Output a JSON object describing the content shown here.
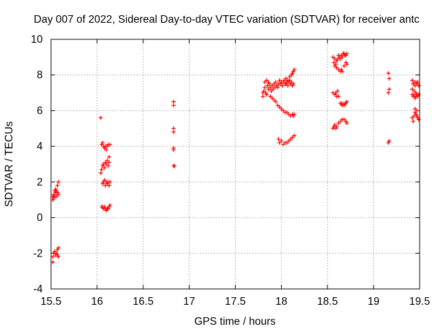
{
  "chart_data": {
    "type": "scatter",
    "title": "Day 007 of 2022, Sidereal Day-to-day VTEC variation (SDTVAR) for receiver antc",
    "xlabel": "GPS time / hours",
    "ylabel": "SDTVAR / TECUs",
    "xlim": [
      15.5,
      19.5
    ],
    "ylim": [
      -4,
      10
    ],
    "xticks": [
      15.5,
      16,
      16.5,
      17,
      17.5,
      18,
      18.5,
      19,
      19.5
    ],
    "xtick_labels": [
      "15.5",
      "16",
      "16.5",
      "17",
      "17.5",
      "18",
      "18.5",
      "19",
      "19.5"
    ],
    "yticks": [
      -4,
      -2,
      0,
      2,
      4,
      6,
      8,
      10
    ],
    "ytick_labels": [
      "-4",
      "-2",
      "0",
      "2",
      "4",
      "6",
      "8",
      "10"
    ],
    "grid": true,
    "marker": "+",
    "color": "#ff0000",
    "series": [
      {
        "name": "SDTVAR",
        "points": [
          [
            15.52,
            1.0
          ],
          [
            15.52,
            1.2
          ],
          [
            15.53,
            1.3
          ],
          [
            15.53,
            1.1
          ],
          [
            15.54,
            1.5
          ],
          [
            15.54,
            1.2
          ],
          [
            15.55,
            1.4
          ],
          [
            15.55,
            1.6
          ],
          [
            15.56,
            1.2
          ],
          [
            15.56,
            1.5
          ],
          [
            15.57,
            1.8
          ],
          [
            15.57,
            1.4
          ],
          [
            15.58,
            2.0
          ],
          [
            15.58,
            1.3
          ],
          [
            15.52,
            -2.5
          ],
          [
            15.52,
            -2.2
          ],
          [
            15.53,
            -2.0
          ],
          [
            15.54,
            -1.9
          ],
          [
            15.55,
            -2.1
          ],
          [
            15.56,
            -2.0
          ],
          [
            15.57,
            -1.8
          ],
          [
            15.57,
            -2.1
          ],
          [
            15.58,
            -1.7
          ],
          [
            15.58,
            -2.2
          ],
          [
            16.04,
            5.6
          ],
          [
            16.04,
            2.5
          ],
          [
            16.05,
            2.7
          ],
          [
            16.06,
            2.9
          ],
          [
            16.07,
            3.0
          ],
          [
            16.08,
            2.8
          ],
          [
            16.09,
            3.1
          ],
          [
            16.1,
            3.0
          ],
          [
            16.11,
            3.2
          ],
          [
            16.12,
            2.9
          ],
          [
            16.13,
            3.1
          ],
          [
            16.13,
            3.4
          ],
          [
            16.05,
            4.1
          ],
          [
            16.06,
            4.2
          ],
          [
            16.07,
            4.0
          ],
          [
            16.08,
            3.9
          ],
          [
            16.09,
            4.0
          ],
          [
            16.1,
            3.8
          ],
          [
            16.11,
            4.0
          ],
          [
            16.12,
            4.1
          ],
          [
            16.14,
            4.1
          ],
          [
            16.06,
            1.9
          ],
          [
            16.07,
            2.0
          ],
          [
            16.08,
            2.1
          ],
          [
            16.09,
            1.8
          ],
          [
            16.1,
            2.0
          ],
          [
            16.11,
            1.9
          ],
          [
            16.12,
            2.0
          ],
          [
            16.13,
            1.8
          ],
          [
            16.14,
            2.0
          ],
          [
            16.05,
            0.6
          ],
          [
            16.06,
            0.6
          ],
          [
            16.07,
            0.5
          ],
          [
            16.08,
            0.6
          ],
          [
            16.09,
            0.5
          ],
          [
            16.1,
            0.4
          ],
          [
            16.11,
            0.5
          ],
          [
            16.12,
            0.5
          ],
          [
            16.13,
            0.6
          ],
          [
            16.14,
            0.7
          ],
          [
            16.83,
            6.5
          ],
          [
            16.83,
            6.3
          ],
          [
            16.83,
            5.0
          ],
          [
            16.83,
            4.8
          ],
          [
            16.83,
            3.9
          ],
          [
            16.83,
            3.8
          ],
          [
            16.83,
            2.9
          ],
          [
            16.84,
            2.9
          ],
          [
            17.8,
            7.0
          ],
          [
            17.8,
            6.8
          ],
          [
            17.81,
            7.1
          ],
          [
            17.82,
            7.3
          ],
          [
            17.83,
            7.0
          ],
          [
            17.84,
            6.9
          ],
          [
            17.85,
            7.4
          ],
          [
            17.86,
            7.2
          ],
          [
            17.87,
            7.5
          ],
          [
            17.88,
            7.3
          ],
          [
            17.89,
            7.1
          ],
          [
            17.9,
            7.4
          ],
          [
            17.91,
            7.2
          ],
          [
            17.92,
            7.5
          ],
          [
            17.93,
            7.3
          ],
          [
            17.94,
            7.6
          ],
          [
            17.95,
            7.4
          ],
          [
            17.96,
            7.3
          ],
          [
            17.97,
            7.5
          ],
          [
            17.98,
            7.7
          ],
          [
            17.99,
            7.5
          ],
          [
            18.0,
            7.6
          ],
          [
            18.01,
            7.4
          ],
          [
            18.02,
            7.6
          ],
          [
            18.03,
            7.7
          ],
          [
            18.04,
            7.5
          ],
          [
            18.05,
            7.8
          ],
          [
            18.06,
            7.6
          ],
          [
            18.07,
            7.4
          ],
          [
            18.08,
            7.6
          ],
          [
            18.09,
            7.7
          ],
          [
            18.1,
            7.5
          ],
          [
            18.11,
            7.6
          ],
          [
            18.12,
            7.4
          ],
          [
            18.13,
            7.5
          ],
          [
            17.82,
            7.6
          ],
          [
            17.84,
            7.7
          ],
          [
            17.86,
            7.6
          ],
          [
            18.05,
            7.5
          ],
          [
            18.07,
            7.7
          ],
          [
            18.09,
            7.9
          ],
          [
            18.11,
            8.0
          ],
          [
            18.12,
            8.1
          ],
          [
            18.13,
            8.2
          ],
          [
            18.14,
            8.3
          ],
          [
            17.88,
            6.8
          ],
          [
            17.9,
            6.7
          ],
          [
            17.92,
            6.6
          ],
          [
            17.94,
            6.5
          ],
          [
            17.96,
            6.3
          ],
          [
            17.98,
            6.2
          ],
          [
            18.0,
            6.1
          ],
          [
            18.02,
            6.0
          ],
          [
            18.04,
            5.9
          ],
          [
            18.06,
            5.9
          ],
          [
            18.08,
            5.8
          ],
          [
            18.1,
            5.7
          ],
          [
            18.12,
            5.8
          ],
          [
            18.13,
            5.7
          ],
          [
            18.14,
            5.8
          ],
          [
            17.97,
            4.4
          ],
          [
            17.98,
            4.2
          ],
          [
            18.0,
            4.3
          ],
          [
            18.02,
            4.1
          ],
          [
            18.04,
            4.2
          ],
          [
            18.06,
            4.2
          ],
          [
            18.08,
            4.3
          ],
          [
            18.1,
            4.4
          ],
          [
            18.12,
            4.5
          ],
          [
            18.14,
            4.6
          ],
          [
            18.56,
            9.0
          ],
          [
            18.57,
            8.7
          ],
          [
            18.58,
            8.9
          ],
          [
            18.59,
            8.6
          ],
          [
            18.6,
            8.8
          ],
          [
            18.61,
            8.9
          ],
          [
            18.62,
            9.1
          ],
          [
            18.63,
            9.0
          ],
          [
            18.64,
            8.9
          ],
          [
            18.65,
            9.1
          ],
          [
            18.66,
            9.0
          ],
          [
            18.67,
            9.2
          ],
          [
            18.68,
            9.2
          ],
          [
            18.69,
            9.1
          ],
          [
            18.7,
            9.1
          ],
          [
            18.71,
            9.2
          ],
          [
            18.58,
            8.5
          ],
          [
            18.6,
            8.4
          ],
          [
            18.62,
            8.3
          ],
          [
            18.64,
            8.2
          ],
          [
            18.65,
            8.3
          ],
          [
            18.66,
            8.2
          ],
          [
            18.68,
            8.5
          ],
          [
            18.7,
            8.7
          ],
          [
            18.71,
            8.6
          ],
          [
            18.56,
            7.0
          ],
          [
            18.58,
            6.9
          ],
          [
            18.59,
            7.0
          ],
          [
            18.6,
            6.8
          ],
          [
            18.61,
            7.1
          ],
          [
            18.62,
            6.8
          ],
          [
            18.64,
            6.4
          ],
          [
            18.65,
            6.4
          ],
          [
            18.66,
            6.3
          ],
          [
            18.67,
            6.4
          ],
          [
            18.68,
            6.3
          ],
          [
            18.69,
            6.4
          ],
          [
            18.7,
            6.4
          ],
          [
            18.71,
            6.5
          ],
          [
            18.56,
            5.0
          ],
          [
            18.57,
            5.1
          ],
          [
            18.58,
            5.2
          ],
          [
            18.59,
            5.0
          ],
          [
            18.6,
            5.1
          ],
          [
            18.62,
            5.3
          ],
          [
            18.64,
            5.4
          ],
          [
            18.66,
            5.5
          ],
          [
            18.68,
            5.5
          ],
          [
            18.7,
            5.4
          ],
          [
            18.71,
            5.3
          ],
          [
            19.16,
            8.1
          ],
          [
            19.17,
            7.8
          ],
          [
            19.17,
            7.2
          ],
          [
            19.16,
            7.0
          ],
          [
            19.17,
            4.3
          ],
          [
            19.16,
            4.2
          ],
          [
            19.42,
            7.7
          ],
          [
            19.43,
            7.5
          ],
          [
            19.44,
            7.6
          ],
          [
            19.45,
            7.4
          ],
          [
            19.46,
            7.6
          ],
          [
            19.47,
            7.5
          ],
          [
            19.48,
            7.6
          ],
          [
            19.49,
            7.4
          ],
          [
            19.42,
            7.2
          ],
          [
            19.44,
            7.1
          ],
          [
            19.46,
            7.0
          ],
          [
            19.42,
            6.9
          ],
          [
            19.43,
            6.8
          ],
          [
            19.44,
            6.9
          ],
          [
            19.45,
            6.7
          ],
          [
            19.46,
            6.8
          ],
          [
            19.47,
            6.9
          ],
          [
            19.48,
            6.8
          ],
          [
            19.49,
            6.9
          ],
          [
            19.42,
            5.6
          ],
          [
            19.43,
            5.4
          ],
          [
            19.44,
            5.7
          ],
          [
            19.45,
            5.9
          ],
          [
            19.46,
            5.8
          ],
          [
            19.47,
            6.0
          ],
          [
            19.48,
            5.6
          ],
          [
            19.49,
            5.5
          ],
          [
            19.45,
            6.1
          ],
          [
            19.47,
            5.7
          ]
        ]
      }
    ]
  }
}
